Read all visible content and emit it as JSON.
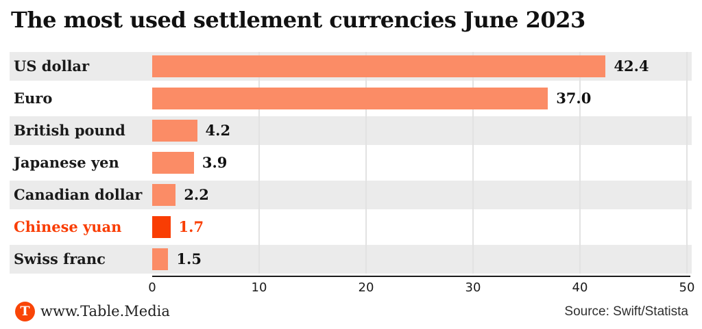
{
  "title": "The most used settlement currencies June 2023",
  "chart_data": {
    "type": "bar",
    "orientation": "horizontal",
    "title": "The most used settlement currencies June 2023",
    "categories": [
      "US dollar",
      "Euro",
      "British pound",
      "Japanese yen",
      "Canadian dollar",
      "Chinese yuan",
      "Swiss franc"
    ],
    "values": [
      42.4,
      37.0,
      4.2,
      3.9,
      2.2,
      1.7,
      1.5
    ],
    "value_labels": [
      "42.4",
      "37.0",
      "4.2",
      "3.9",
      "2.2",
      "1.7",
      "1.5"
    ],
    "highlight_category": "Chinese yuan",
    "xlabel": "",
    "ylabel": "",
    "xlim": [
      0,
      50
    ],
    "xticks": [
      0,
      10,
      20,
      30,
      40,
      50
    ],
    "grid": true,
    "legend": false,
    "colors": {
      "bar": "#fb8c66",
      "highlight": "#f93d03",
      "row_band_gray": "#ebebeb",
      "row_band_white": "#ffffff",
      "gridline": "#e2e2e2",
      "axis": "#1a1a1a",
      "text": "#1a1a1a"
    }
  },
  "footer": {
    "logo_letter": "T",
    "site": "www.Table.Media",
    "source": "Source: Swift/Statista"
  }
}
